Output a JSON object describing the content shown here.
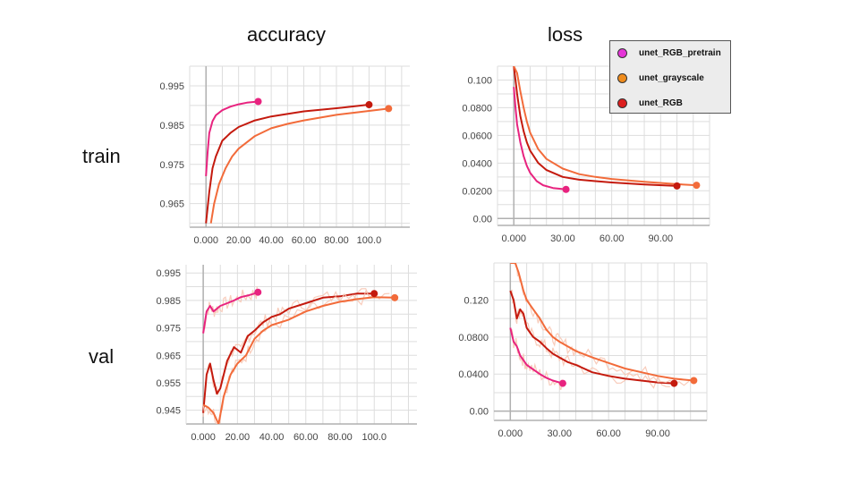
{
  "columns": {
    "accuracy": "accuracy",
    "loss": "loss"
  },
  "rows": {
    "train": "train",
    "val": "val"
  },
  "legend": [
    {
      "name": "unet_RGB_pretrain",
      "color": "#e535d8"
    },
    {
      "name": "unet_grayscale",
      "color": "#ef8c1d"
    },
    {
      "name": "unet_RGB",
      "color": "#dc1f1f"
    }
  ],
  "colors": {
    "unet_RGB_pretrain": "#e8237f",
    "unet_grayscale": "#f26b3a",
    "unet_RGB": "#c41a0e",
    "raw_trace": "#f7c6b4",
    "grid": "#dddddd",
    "axis": "#b0b0b0"
  },
  "chart_data": [
    {
      "type": "line",
      "panel": "train-accuracy",
      "xlim": [
        -10,
        125
      ],
      "ylim": [
        0.959,
        1.0
      ],
      "xticks": [
        "0.000",
        "20.00",
        "40.00",
        "60.00",
        "80.00",
        "100.0"
      ],
      "yticks": [
        "0.995",
        "0.985",
        "0.975",
        "0.965"
      ],
      "series": [
        {
          "name": "unet_RGB_pretrain",
          "x": [
            0,
            1,
            2,
            4,
            6,
            10,
            15,
            20,
            25,
            32
          ],
          "y": [
            0.972,
            0.978,
            0.983,
            0.986,
            0.9875,
            0.9888,
            0.9897,
            0.9903,
            0.9907,
            0.991
          ]
        },
        {
          "name": "unet_RGB",
          "x": [
            0,
            2,
            4,
            6,
            10,
            15,
            20,
            30,
            40,
            60,
            80,
            100
          ],
          "y": [
            0.96,
            0.968,
            0.974,
            0.977,
            0.981,
            0.983,
            0.9845,
            0.9862,
            0.9872,
            0.9885,
            0.9893,
            0.9902
          ]
        },
        {
          "name": "unet_grayscale",
          "x": [
            3,
            5,
            8,
            12,
            16,
            20,
            30,
            40,
            50,
            60,
            80,
            100,
            112
          ],
          "y": [
            0.96,
            0.965,
            0.97,
            0.974,
            0.977,
            0.979,
            0.9822,
            0.9842,
            0.9853,
            0.9862,
            0.9876,
            0.9886,
            0.9892
          ]
        }
      ]
    },
    {
      "type": "line",
      "panel": "train-loss",
      "xlim": [
        -10,
        120
      ],
      "ylim": [
        -0.005,
        0.11
      ],
      "xticks": [
        "0.000",
        "30.00",
        "60.00",
        "90.00"
      ],
      "yticks": [
        "0.100",
        "0.0800",
        "0.0600",
        "0.0400",
        "0.0200",
        "0.00"
      ],
      "series": [
        {
          "name": "unet_RGB_pretrain",
          "x": [
            0,
            1,
            2,
            4,
            6,
            8,
            10,
            14,
            18,
            24,
            30,
            32
          ],
          "y": [
            0.095,
            0.08,
            0.068,
            0.055,
            0.045,
            0.038,
            0.033,
            0.027,
            0.024,
            0.022,
            0.0212,
            0.021
          ]
        },
        {
          "name": "unet_RGB",
          "x": [
            0,
            1,
            2,
            4,
            6,
            8,
            10,
            15,
            20,
            30,
            40,
            50,
            60,
            80,
            100
          ],
          "y": [
            0.11,
            0.1,
            0.09,
            0.074,
            0.063,
            0.055,
            0.049,
            0.04,
            0.035,
            0.03,
            0.028,
            0.027,
            0.026,
            0.0245,
            0.0235
          ]
        },
        {
          "name": "unet_grayscale",
          "x": [
            0,
            2,
            4,
            6,
            8,
            10,
            15,
            20,
            30,
            40,
            50,
            60,
            80,
            100,
            112
          ],
          "y": [
            0.11,
            0.105,
            0.092,
            0.08,
            0.07,
            0.062,
            0.05,
            0.043,
            0.036,
            0.032,
            0.03,
            0.0285,
            0.0265,
            0.0248,
            0.024
          ]
        }
      ]
    },
    {
      "type": "line",
      "panel": "val-accuracy",
      "xlim": [
        -10,
        125
      ],
      "ylim": [
        0.94,
        0.998
      ],
      "xticks": [
        "0.000",
        "20.00",
        "40.00",
        "60.00",
        "80.00",
        "100.0"
      ],
      "yticks": [
        "0.995",
        "0.985",
        "0.975",
        "0.965",
        "0.955",
        "0.945"
      ],
      "series": [
        {
          "name": "unet_RGB_pretrain",
          "x": [
            0,
            2,
            4,
            6,
            8,
            10,
            14,
            18,
            22,
            26,
            30,
            32
          ],
          "y": [
            0.973,
            0.981,
            0.983,
            0.981,
            0.982,
            0.983,
            0.984,
            0.985,
            0.9862,
            0.9868,
            0.9875,
            0.988
          ]
        },
        {
          "name": "unet_RGB",
          "x": [
            0,
            2,
            4,
            6,
            8,
            10,
            14,
            18,
            22,
            26,
            30,
            35,
            40,
            45,
            50,
            60,
            70,
            80,
            90,
            100
          ],
          "y": [
            0.944,
            0.958,
            0.962,
            0.956,
            0.951,
            0.953,
            0.963,
            0.968,
            0.966,
            0.972,
            0.974,
            0.977,
            0.979,
            0.98,
            0.982,
            0.984,
            0.986,
            0.9865,
            0.9875,
            0.9875
          ]
        },
        {
          "name": "unet_grayscale",
          "x": [
            0,
            3,
            6,
            9,
            12,
            16,
            20,
            25,
            30,
            35,
            40,
            50,
            60,
            70,
            80,
            90,
            100,
            112
          ],
          "y": [
            0.947,
            0.946,
            0.944,
            0.94,
            0.95,
            0.958,
            0.962,
            0.965,
            0.971,
            0.974,
            0.976,
            0.978,
            0.981,
            0.983,
            0.9845,
            0.9855,
            0.9862,
            0.986
          ]
        }
      ]
    },
    {
      "type": "line",
      "panel": "val-loss",
      "xlim": [
        -10,
        120
      ],
      "ylim": [
        -0.01,
        0.16
      ],
      "xticks": [
        "0.000",
        "30.00",
        "60.00",
        "90.00"
      ],
      "yticks": [
        "0.120",
        "0.0800",
        "0.0400",
        "0.00"
      ],
      "series": [
        {
          "name": "unet_RGB_pretrain",
          "x": [
            0,
            2,
            4,
            6,
            8,
            10,
            14,
            18,
            22,
            26,
            30,
            32
          ],
          "y": [
            0.09,
            0.075,
            0.07,
            0.06,
            0.055,
            0.05,
            0.045,
            0.04,
            0.036,
            0.033,
            0.031,
            0.03
          ]
        },
        {
          "name": "unet_RGB",
          "x": [
            0,
            2,
            4,
            6,
            8,
            10,
            14,
            18,
            22,
            26,
            30,
            35,
            40,
            50,
            60,
            70,
            80,
            90,
            100
          ],
          "y": [
            0.13,
            0.12,
            0.1,
            0.11,
            0.105,
            0.09,
            0.08,
            0.075,
            0.068,
            0.062,
            0.058,
            0.053,
            0.05,
            0.042,
            0.038,
            0.035,
            0.033,
            0.031,
            0.03
          ]
        },
        {
          "name": "unet_grayscale",
          "x": [
            0,
            3,
            5,
            8,
            10,
            14,
            18,
            22,
            26,
            30,
            35,
            40,
            50,
            60,
            70,
            80,
            90,
            100,
            112
          ],
          "y": [
            0.17,
            0.16,
            0.15,
            0.13,
            0.12,
            0.11,
            0.1,
            0.088,
            0.08,
            0.075,
            0.07,
            0.065,
            0.058,
            0.052,
            0.046,
            0.042,
            0.038,
            0.035,
            0.033
          ]
        }
      ]
    }
  ]
}
